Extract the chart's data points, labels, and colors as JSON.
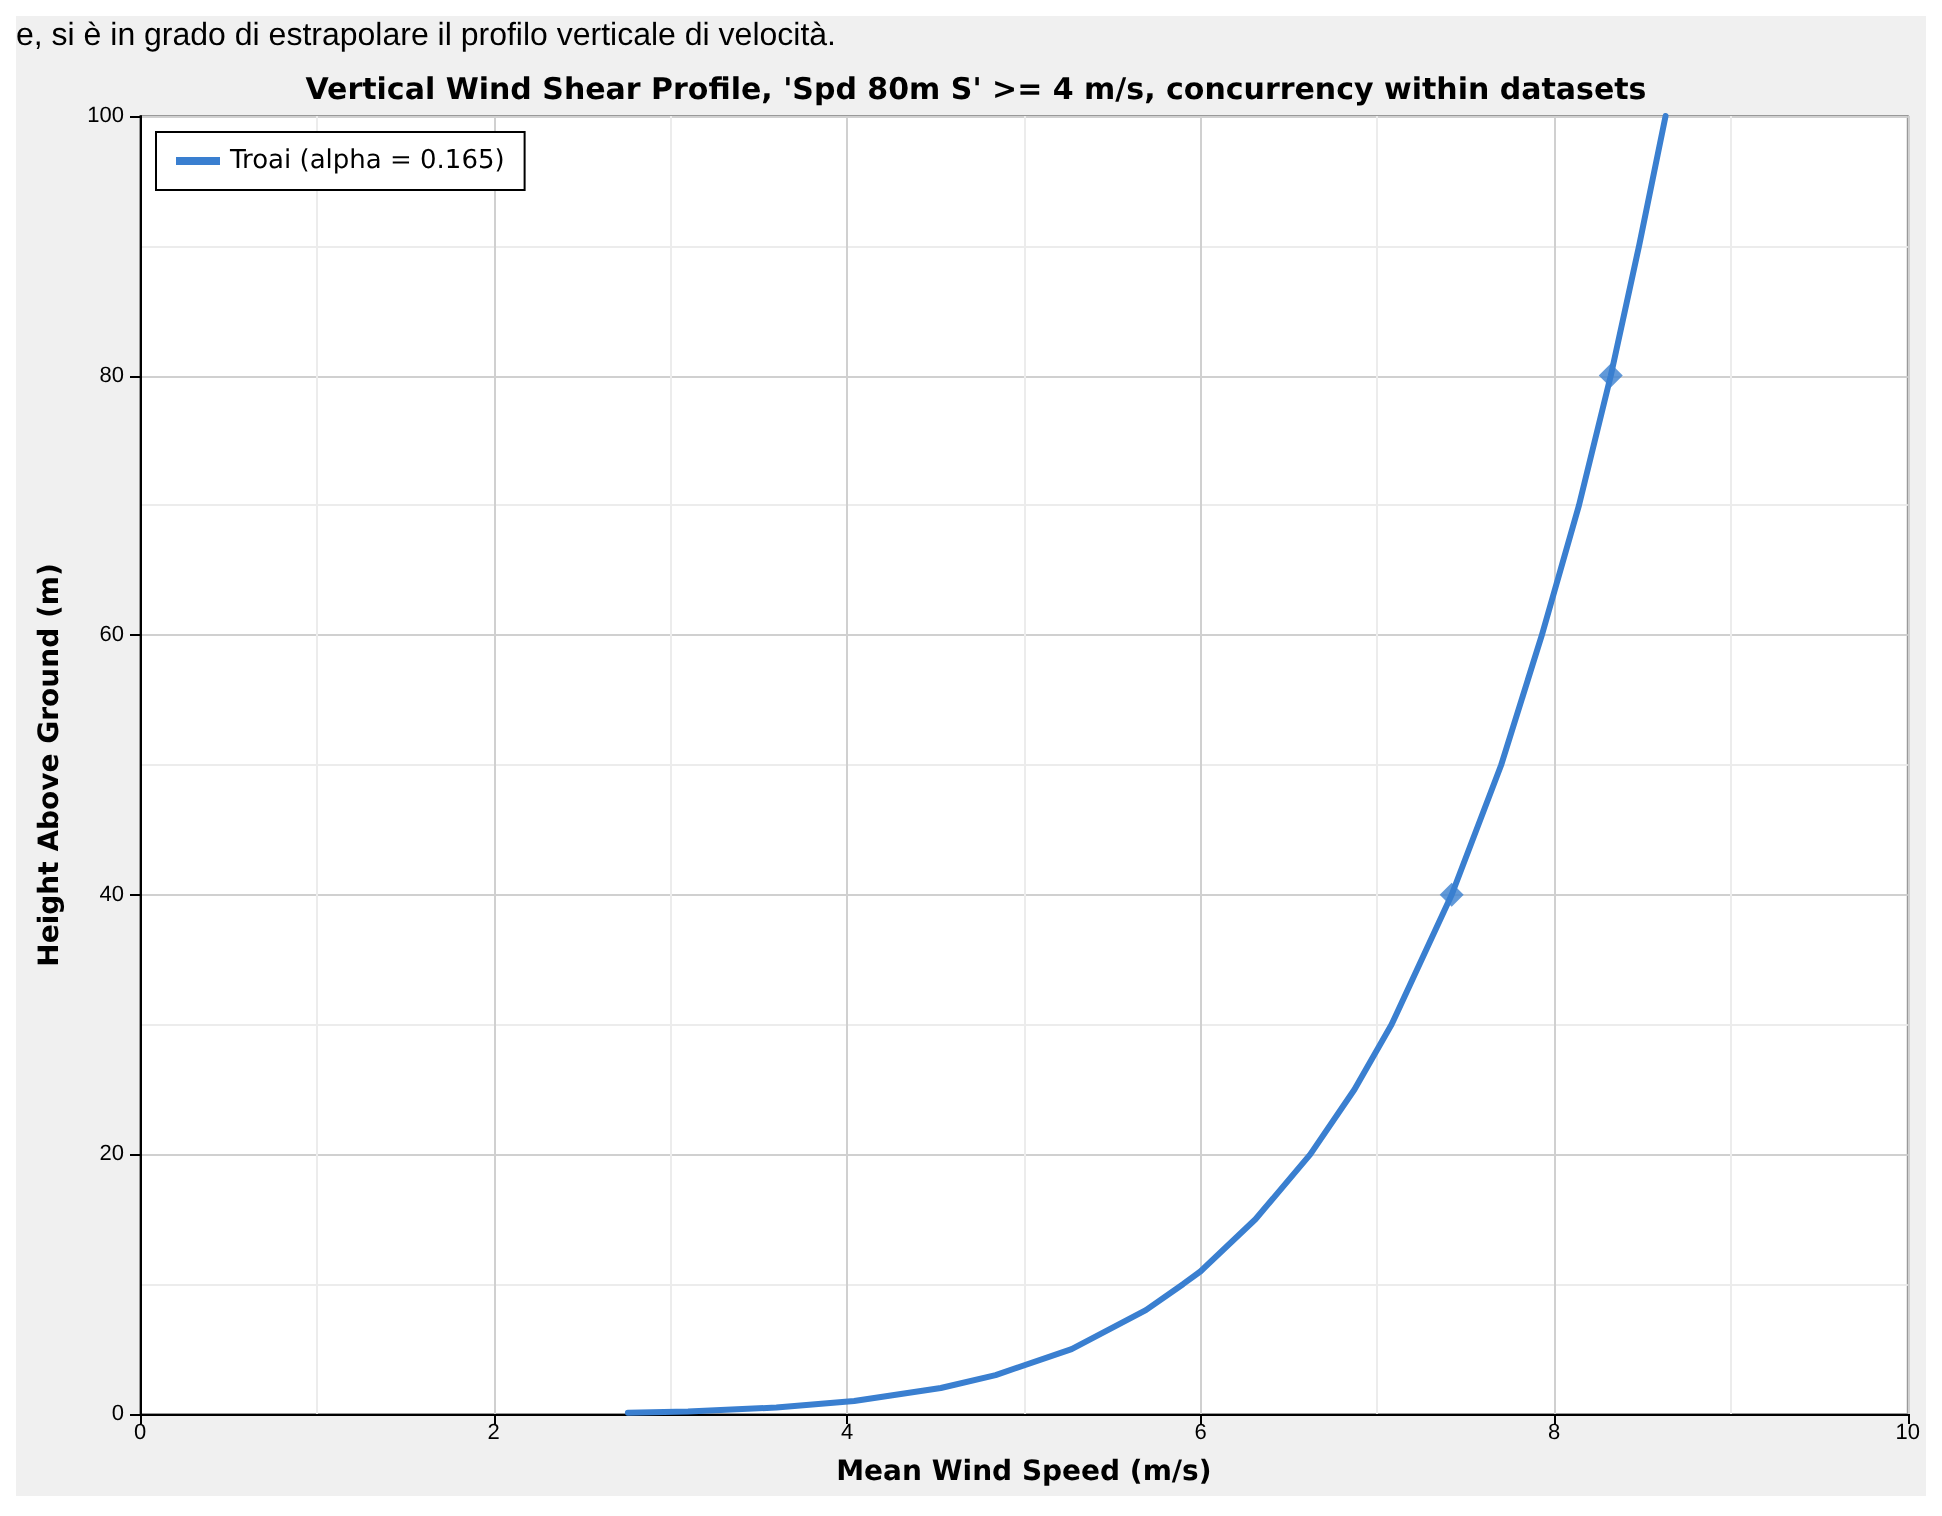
{
  "chart_data": {
    "type": "line",
    "title": "Vertical Wind Shear Profile, 'Spd 80m S' >= 4 m/s, concurrency within datasets",
    "xlabel": "Mean Wind Speed (m/s)",
    "ylabel": "Height Above Ground (m)",
    "annotations": [
      "e, si è in grado di estrapolare il profilo verticale di velocità."
    ],
    "xlim": [
      0,
      10
    ],
    "xticks": [
      0,
      2,
      4,
      6,
      8,
      10
    ],
    "ylim": [
      0,
      100
    ],
    "yticks": [
      0,
      20,
      40,
      60,
      80,
      100
    ],
    "grid": true,
    "legend": "top left",
    "line_style": "solid",
    "series": [
      {
        "name": "Troai (alpha = 0.165)",
        "color": "#3a7fd0",
        "marker": "none",
        "x": [
          2.76,
          3.1,
          3.6,
          4.04,
          4.53,
          4.84,
          5.27,
          5.69,
          5.9,
          6.0,
          6.31,
          6.62,
          6.87,
          7.08,
          7.42,
          7.7,
          7.93,
          8.14,
          8.32,
          8.48,
          8.63
        ],
        "values": [
          0.1,
          0.2,
          0.5,
          1,
          2,
          3,
          5,
          8,
          10,
          11,
          15,
          20,
          25,
          30,
          40,
          50,
          60,
          70,
          80,
          90,
          100
        ]
      },
      {
        "type": "scatter",
        "color": "#3a7fd0",
        "marker": "diamond",
        "x": [
          7.42,
          8.32
        ],
        "values": [
          40,
          80
        ]
      }
    ]
  }
}
